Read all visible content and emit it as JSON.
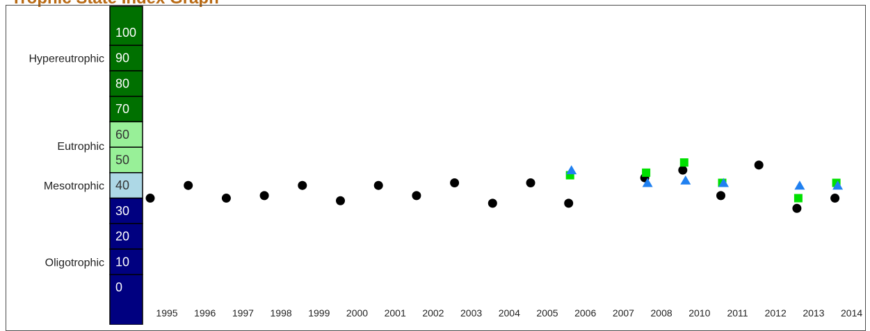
{
  "title": "Trophic State Index Graph",
  "chart_data": {
    "type": "scatter",
    "title": "Trophic State Index Graph",
    "trophic_bands": [
      {
        "name": "Hypereutrophic",
        "from": 70,
        "to": 100,
        "color": "#007000",
        "text_color": "#ffffff"
      },
      {
        "name": "Eutrophic",
        "from": 50,
        "to": 60,
        "color": "#98f098",
        "text_color": "#333333"
      },
      {
        "name": "Mesotrophic",
        "from": 40,
        "to": 40,
        "color": "#add8e6",
        "text_color": "#333333"
      },
      {
        "name": "Oligotrophic",
        "from": 0,
        "to": 30,
        "color": "#000080",
        "text_color": "#ffffff"
      }
    ],
    "scale_ticks": [
      "100",
      "90",
      "80",
      "70",
      "60",
      "50",
      "40",
      "30",
      "20",
      "10",
      "0"
    ],
    "scale_tick_values": [
      100,
      90,
      80,
      70,
      60,
      50,
      40,
      30,
      20,
      10,
      0
    ],
    "ylim": [
      -10,
      110
    ],
    "categories": [
      "1995",
      "1996",
      "1997",
      "1998",
      "1999",
      "2000",
      "2001",
      "2002",
      "2003",
      "2004",
      "2005",
      "2006",
      "2007",
      "2008",
      "2010",
      "2011",
      "2012",
      "2013",
      "2014"
    ],
    "series": [
      {
        "marker": "circle",
        "color": "#000000",
        "points": [
          {
            "x": "1995",
            "y": 35
          },
          {
            "x": "1996",
            "y": 40
          },
          {
            "x": "1997",
            "y": 35
          },
          {
            "x": "1998",
            "y": 36
          },
          {
            "x": "1999",
            "y": 40
          },
          {
            "x": "2000",
            "y": 34
          },
          {
            "x": "2001",
            "y": 40
          },
          {
            "x": "2002",
            "y": 36
          },
          {
            "x": "2003",
            "y": 41
          },
          {
            "x": "2004",
            "y": 33
          },
          {
            "x": "2005",
            "y": 41
          },
          {
            "x": "2006",
            "y": 33
          },
          {
            "x": "2008",
            "y": 43
          },
          {
            "x": "2010",
            "y": 46
          },
          {
            "x": "2011",
            "y": 36
          },
          {
            "x": "2012",
            "y": 48
          },
          {
            "x": "2013",
            "y": 31
          },
          {
            "x": "2014",
            "y": 35
          }
        ]
      },
      {
        "marker": "square",
        "color": "#00e000",
        "points": [
          {
            "x": "2006",
            "y": 44
          },
          {
            "x": "2008",
            "y": 45
          },
          {
            "x": "2010",
            "y": 49
          },
          {
            "x": "2011",
            "y": 41
          },
          {
            "x": "2013",
            "y": 35
          },
          {
            "x": "2014",
            "y": 41
          }
        ]
      },
      {
        "marker": "triangle",
        "color": "#2080f0",
        "points": [
          {
            "x": "2006",
            "y": 46
          },
          {
            "x": "2008",
            "y": 41
          },
          {
            "x": "2010",
            "y": 42
          },
          {
            "x": "2011",
            "y": 41
          },
          {
            "x": "2013",
            "y": 40
          },
          {
            "x": "2014",
            "y": 40
          }
        ]
      }
    ]
  }
}
